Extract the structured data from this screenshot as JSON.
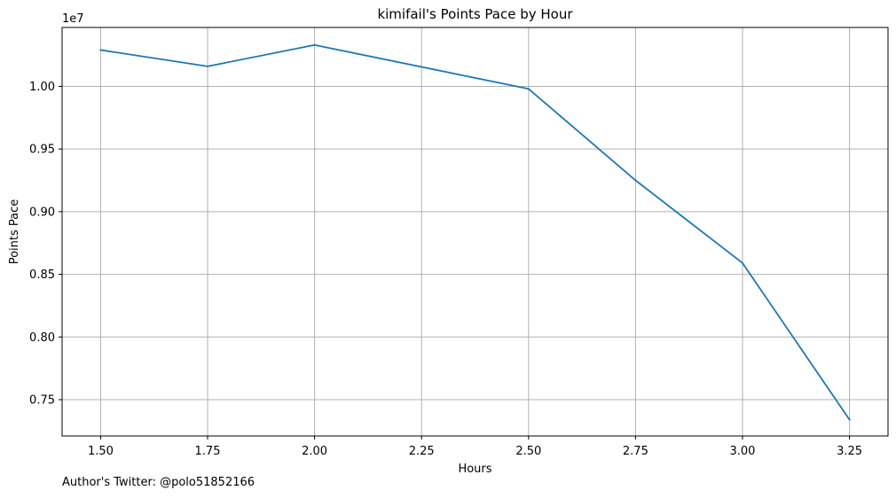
{
  "chart_data": {
    "type": "line",
    "title": "kimifail's Points Pace by Hour",
    "xlabel": "Hours",
    "ylabel": "Points Pace",
    "y_offset_label": "1e7",
    "x": [
      1.5,
      1.75,
      2.0,
      2.5,
      2.75,
      3.0,
      3.25
    ],
    "series": [
      {
        "values": [
          10290000,
          10160000,
          10330000,
          9980000,
          9250000,
          8590000,
          7340000
        ]
      }
    ],
    "xlim": [
      1.41,
      3.34
    ],
    "ylim": [
      7210000,
      10470000
    ],
    "x_ticks": [
      1.5,
      1.75,
      2.0,
      2.25,
      2.5,
      2.75,
      3.0,
      3.25
    ],
    "x_tick_labels": [
      "1.50",
      "1.75",
      "2.00",
      "2.25",
      "2.50",
      "2.75",
      "3.00",
      "3.25"
    ],
    "y_ticks": [
      7500000,
      8000000,
      8500000,
      9000000,
      9500000,
      10000000
    ],
    "y_tick_labels": [
      "0.75",
      "0.80",
      "0.85",
      "0.90",
      "0.95",
      "1.00"
    ],
    "grid": true,
    "colors": {
      "line": "#1f77b4",
      "grid": "#b0b0b0",
      "axes": "#000000"
    }
  },
  "footer": {
    "text": "Author's Twitter: @polo51852166"
  }
}
